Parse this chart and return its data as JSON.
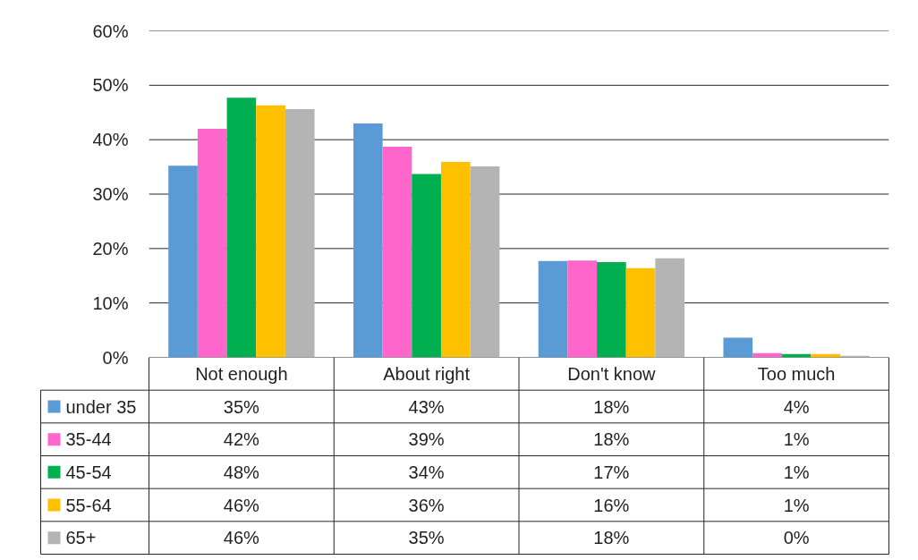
{
  "chart_data": {
    "type": "bar",
    "categories": [
      "Not enough",
      "About right",
      "Don't know",
      "Too much"
    ],
    "series": [
      {
        "name": "under 35",
        "color": "#5b9bd5",
        "values": [
          35.2,
          43.0,
          17.7,
          3.6
        ],
        "value_labels": [
          "35%",
          "43%",
          "18%",
          "4%"
        ]
      },
      {
        "name": "35-44",
        "color": "#ff66cc",
        "values": [
          42.0,
          38.7,
          17.8,
          0.8
        ],
        "value_labels": [
          "42%",
          "39%",
          "18%",
          "1%"
        ]
      },
      {
        "name": "45-54",
        "color": "#00b050",
        "values": [
          47.7,
          33.7,
          17.5,
          0.6
        ],
        "value_labels": [
          "48%",
          "34%",
          "17%",
          "1%"
        ]
      },
      {
        "name": "55-64",
        "color": "#ffc000",
        "values": [
          46.3,
          35.9,
          16.4,
          0.6
        ],
        "value_labels": [
          "46%",
          "36%",
          "16%",
          "1%"
        ]
      },
      {
        "name": "65+",
        "color": "#b4b4b4",
        "values": [
          45.6,
          35.1,
          18.2,
          0.3
        ],
        "value_labels": [
          "46%",
          "35%",
          "18%",
          "0%"
        ]
      }
    ],
    "ylim": [
      0,
      60
    ],
    "yticks": [
      {
        "value": 0,
        "label": "0%"
      },
      {
        "value": 10,
        "label": "10%"
      },
      {
        "value": 20,
        "label": "20%"
      },
      {
        "value": 30,
        "label": "30%"
      },
      {
        "value": 40,
        "label": "40%"
      },
      {
        "value": 50,
        "label": "50%"
      },
      {
        "value": 60,
        "label": "60%"
      }
    ],
    "grid": "y",
    "legend": "bottom"
  }
}
